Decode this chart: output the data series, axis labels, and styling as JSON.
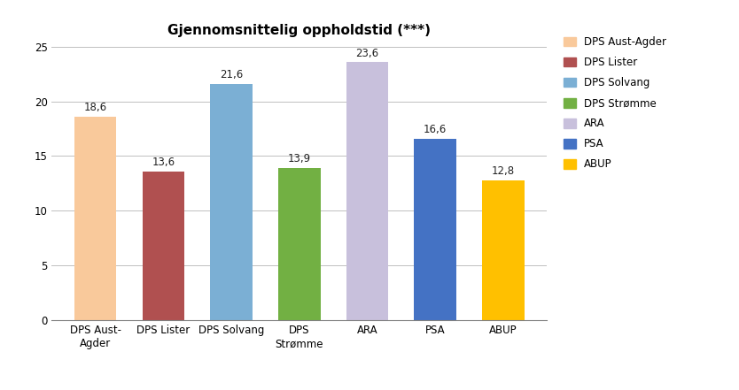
{
  "title": "Gjennomsnittelig oppholdstid (***)",
  "categories": [
    "DPS Aust-\nAgder",
    "DPS Lister",
    "DPS Solvang",
    "DPS\nStrømme",
    "ARA",
    "PSA",
    "ABUP"
  ],
  "legend_labels": [
    "DPS Aust-Agder",
    "DPS Lister",
    "DPS Solvang",
    "DPS Strømme",
    "ARA",
    "PSA",
    "ABUP"
  ],
  "values": [
    18.6,
    13.6,
    21.6,
    13.9,
    23.6,
    16.6,
    12.8
  ],
  "bar_colors": [
    "#F9C99B",
    "#B05050",
    "#7BAFD4",
    "#72B043",
    "#C8C0DC",
    "#4472C4",
    "#FFC000"
  ],
  "ylim": [
    0,
    25
  ],
  "yticks": [
    0,
    5,
    10,
    15,
    20,
    25
  ],
  "title_fontsize": 11,
  "label_fontsize": 8.5,
  "tick_fontsize": 8.5,
  "legend_fontsize": 8.5,
  "background_color": "#FFFFFF",
  "grid_color": "#C0C0C0",
  "bottom_spine_color": "#808080"
}
